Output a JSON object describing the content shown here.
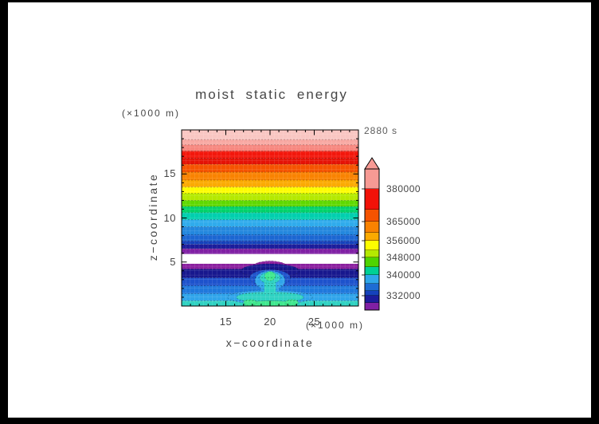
{
  "title": {
    "text": "moist static energy"
  },
  "time_badge": {
    "text": "2880 s"
  },
  "axes": {
    "x": {
      "label": "x−coordinate",
      "unit": "(×1000 m)",
      "major_ticks": [
        15,
        20,
        25
      ],
      "minor_step": 1,
      "range": [
        10,
        30
      ]
    },
    "z": {
      "label": "z−coordinate",
      "unit": "(×1000 m)",
      "major_ticks": [
        5,
        10,
        15
      ],
      "minor_step": 1,
      "range": [
        0,
        20
      ]
    }
  },
  "chart_data": {
    "type": "heatmap",
    "title": "moist static energy",
    "time": "2880 s",
    "xlabel": "x−coordinate (×1000 m)",
    "ylabel": "z−coordinate (×1000 m)",
    "x_range": [
      10,
      30
    ],
    "z_range": [
      0,
      20
    ],
    "contour_level_labels": [
      "380000",
      "365000",
      "356000",
      "348000",
      "340000",
      "332000"
    ],
    "grid": {
      "mesh_step_units": 0.5,
      "mesh_color": "#ffffff",
      "mesh_opacity": 0.28
    },
    "bands": [
      {
        "z": [
          18.9,
          20.0
        ],
        "color": "#f9c6c2"
      },
      {
        "z": [
          18.3,
          18.9
        ],
        "color": "#f8a8a2"
      },
      {
        "z": [
          17.6,
          18.3
        ],
        "color": "#f7867e"
      },
      {
        "z": [
          16.8,
          17.6
        ],
        "color": "#f3170c"
      },
      {
        "z": [
          16.1,
          16.8
        ],
        "color": "#e51206"
      },
      {
        "z": [
          15.2,
          16.1
        ],
        "color": "#f55300"
      },
      {
        "z": [
          14.3,
          15.2
        ],
        "color": "#f98200"
      },
      {
        "z": [
          13.5,
          14.3
        ],
        "color": "#fbaa00"
      },
      {
        "z": [
          12.8,
          13.5
        ],
        "color": "#fdfd00"
      },
      {
        "z": [
          12.0,
          12.8
        ],
        "color": "#b4e900"
      },
      {
        "z": [
          11.3,
          12.0
        ],
        "color": "#5fd800"
      },
      {
        "z": [
          10.6,
          11.3
        ],
        "color": "#00d26a"
      },
      {
        "z": [
          9.8,
          10.6
        ],
        "color": "#00cfae"
      },
      {
        "z": [
          9.0,
          9.8
        ],
        "color": "#2fabec"
      },
      {
        "z": [
          8.1,
          9.0
        ],
        "color": "#2287de"
      },
      {
        "z": [
          7.4,
          8.1
        ],
        "color": "#1b66d2"
      },
      {
        "z": [
          7.0,
          7.4
        ],
        "color": "#1542bc"
      },
      {
        "z": [
          6.5,
          7.0
        ],
        "color": "#1c1c9c"
      },
      {
        "z": [
          5.9,
          6.5
        ],
        "color": "#8020a4"
      },
      {
        "z": [
          4.8,
          5.9
        ],
        "color": "#ffffff"
      },
      {
        "z": [
          4.2,
          4.8
        ],
        "color": "#8a1f9e"
      },
      {
        "z": [
          3.2,
          4.2
        ],
        "color": "#17178e"
      },
      {
        "z": [
          2.3,
          3.2
        ],
        "color": "#1d52cc"
      },
      {
        "z": [
          1.4,
          2.3
        ],
        "color": "#1f78dc"
      },
      {
        "z": [
          0.6,
          1.4
        ],
        "color": "#2fa4ea"
      },
      {
        "z": [
          0.0,
          0.6
        ],
        "color": "#2fd2c2"
      }
    ],
    "plume_features": [
      {
        "shape": "ellipse",
        "cx": 20,
        "cz": 4.5,
        "rx": 1.9,
        "rz": 0.62,
        "color": "#8a1f9e"
      },
      {
        "shape": "ellipse",
        "cx": 20,
        "cz": 4.0,
        "rx": 3.3,
        "rz": 0.8,
        "color": "#17178e"
      },
      {
        "shape": "ellipse",
        "cx": 20,
        "cz": 3.2,
        "rx": 2.3,
        "rz": 0.95,
        "color": "#1d52cc"
      },
      {
        "shape": "ellipse",
        "cx": 20,
        "cz": 1.0,
        "rx": 4.8,
        "rz": 0.8,
        "color": "#2fa4ea"
      },
      {
        "shape": "rect",
        "x": [
          19.0,
          21.0
        ],
        "z": [
          0.6,
          2.9
        ],
        "color": "#2fa4ea"
      },
      {
        "shape": "ellipse",
        "cx": 20,
        "cz": 2.9,
        "rx": 1.7,
        "rz": 1.1,
        "color": "#2fa4ea"
      },
      {
        "shape": "ellipse",
        "cx": 20,
        "cz": 1.0,
        "rx": 3.8,
        "rz": 0.62,
        "color": "#2fd2c2"
      },
      {
        "shape": "rect",
        "x": [
          19.35,
          20.65
        ],
        "z": [
          0.0,
          3.2
        ],
        "color": "#2fd2c2"
      },
      {
        "shape": "ellipse",
        "cx": 20,
        "cz": 3.2,
        "rx": 1.15,
        "rz": 0.64,
        "color": "#2fd2c2"
      },
      {
        "shape": "ellipse",
        "cx": 20,
        "cz": 3.4,
        "rx": 0.6,
        "rz": 0.52,
        "color": "#3fe88e"
      },
      {
        "shape": "ellipse",
        "cx": 20,
        "cz": 0.05,
        "rx": 2.9,
        "rz": 0.55,
        "color": "#3fe88e"
      },
      {
        "shape": "ellipse",
        "cx": 17.75,
        "cz": 0.4,
        "rx": 0.75,
        "rz": 0.33,
        "color": "#3fe88e"
      },
      {
        "shape": "ellipse",
        "cx": 22.45,
        "cz": 0.4,
        "rx": 0.75,
        "rz": 0.33,
        "color": "#3fe88e"
      }
    ],
    "colorbar": {
      "arrow_color": "#f79a94",
      "segments": [
        {
          "color": "#f79a94",
          "h": 25,
          "label": "380000"
        },
        {
          "color": "#f21208",
          "h": 26
        },
        {
          "color": "#f55300",
          "h": 15,
          "label": "365000"
        },
        {
          "color": "#f98200",
          "h": 14
        },
        {
          "color": "#fbaa00",
          "h": 10,
          "label": "356000"
        },
        {
          "color": "#fdfd00",
          "h": 12
        },
        {
          "color": "#b4e900",
          "h": 9,
          "label": "348000"
        },
        {
          "color": "#4fd400",
          "h": 12
        },
        {
          "color": "#00d095",
          "h": 10,
          "label": "340000"
        },
        {
          "color": "#2fa7ea",
          "h": 11
        },
        {
          "color": "#1e6cd4",
          "h": 9
        },
        {
          "color": "#1542bc",
          "h": 6,
          "label": "332000"
        },
        {
          "color": "#1c1c9c",
          "h": 9
        },
        {
          "color": "#8020a4",
          "h": 9
        }
      ]
    }
  }
}
